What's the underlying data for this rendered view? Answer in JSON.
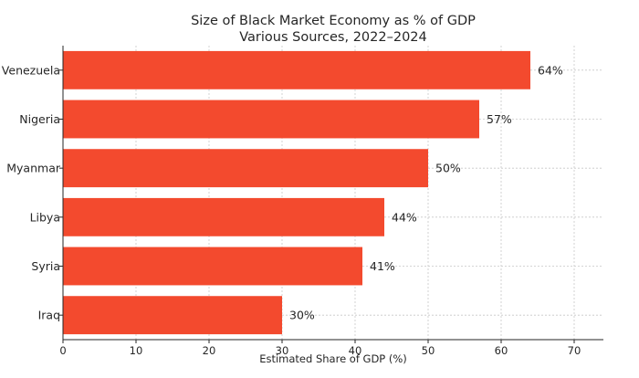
{
  "chart_data": {
    "type": "bar",
    "orientation": "horizontal",
    "title": "Size of Black Market Economy as % of GDP",
    "subtitle": "Various Sources, 2022–2024",
    "xlabel": "Estimated Share of GDP (%)",
    "ylabel": "",
    "categories": [
      "Venezuela",
      "Nigeria",
      "Myanmar",
      "Libya",
      "Syria",
      "Iraq"
    ],
    "values": [
      64,
      57,
      50,
      44,
      41,
      30
    ],
    "data_labels": [
      "64%",
      "57%",
      "50%",
      "44%",
      "41%",
      "30%"
    ],
    "xlim": [
      0,
      74
    ],
    "xticks": [
      0,
      10,
      20,
      30,
      40,
      50,
      60,
      70
    ],
    "grid": true,
    "bar_color": "#f34a2e"
  }
}
